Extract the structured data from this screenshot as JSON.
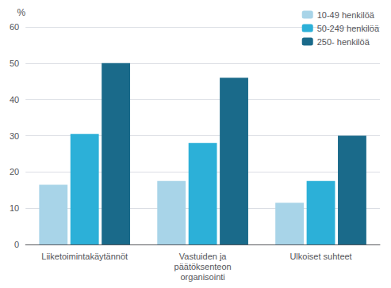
{
  "chart_data": {
    "type": "bar",
    "categories": [
      "Liiketoimintakäytännöt",
      "Vastuiden ja\npäätöksenteon\norganisointi",
      "Ulkoiset suhteet"
    ],
    "series": [
      {
        "name": "10-49 henkilöä",
        "values": [
          16.5,
          17.5,
          11.5
        ],
        "color": "#a8d4e8"
      },
      {
        "name": "50-249 henkilöä",
        "values": [
          30.5,
          28.0,
          17.5
        ],
        "color": "#2cb0d8"
      },
      {
        "name": "250- henkilöä",
        "values": [
          50.0,
          46.0,
          30.0
        ],
        "color": "#1a6a8a"
      }
    ],
    "ylabel": "%",
    "ylim": [
      0,
      60
    ],
    "yticks": [
      0,
      10,
      20,
      30,
      40,
      50,
      60
    ],
    "grid": true,
    "legend": "upper right"
  }
}
